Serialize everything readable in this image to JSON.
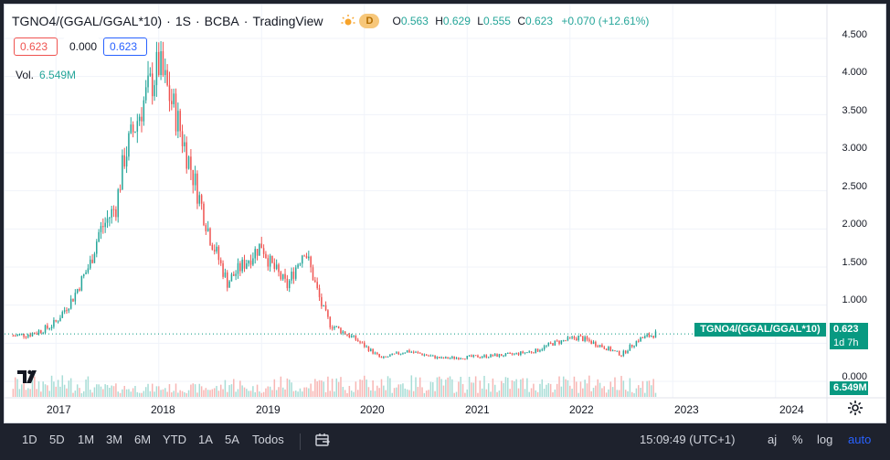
{
  "header": {
    "symbol": "TGNO4/(GGAL/GGAL*10)",
    "interval": "1S",
    "exchange": "BCBA",
    "source": "TradingView",
    "separator": "·",
    "market_badge": "D",
    "ohlc": {
      "o_label": "O",
      "o": "0.563",
      "h_label": "H",
      "h": "0.629",
      "l_label": "L",
      "l": "0.555",
      "c_label": "C",
      "c": "0.623",
      "change": "+0.070 (+12.61%)"
    }
  },
  "price_boxes": {
    "bid": "0.623",
    "spread": "0.000",
    "ask": "0.623"
  },
  "volume_legend": {
    "label": "Vol.",
    "value": "6.549M"
  },
  "price_axis": {
    "labels": [
      "4.500",
      "4.000",
      "3.500",
      "3.000",
      "2.500",
      "2.000",
      "1.500",
      "1.000",
      "0.000"
    ],
    "last_price": "0.623",
    "countdown": "1d 7h",
    "volume_tag": "6.549M",
    "series_tag": "TGNO4/(GGAL/GGAL*10)"
  },
  "time_axis": {
    "labels": [
      "2017",
      "2018",
      "2019",
      "2020",
      "2021",
      "2022",
      "2023",
      "2024"
    ]
  },
  "toolbar": {
    "ranges": [
      "1D",
      "5D",
      "1M",
      "3M",
      "6M",
      "YTD",
      "1A",
      "5A",
      "Todos"
    ],
    "clock": "15:09:49 (UTC+1)",
    "adj": "aj",
    "percent": "%",
    "log": "log",
    "auto": "auto"
  },
  "colors": {
    "up": "#26a69a",
    "down": "#ef5350",
    "accent": "#2962ff",
    "toolbar_bg": "#1e222d",
    "chart_bg": "#ffffff"
  },
  "chart_data": {
    "type": "candlestick",
    "interval": "weekly",
    "x_range": [
      "2016-07",
      "2024-07"
    ],
    "ylim": [
      0,
      4.5
    ],
    "last_price": 0.623,
    "volume_last": "6.549M",
    "price_path": [
      {
        "date": "2016-08",
        "close": 0.6
      },
      {
        "date": "2016-10",
        "close": 0.62
      },
      {
        "date": "2016-12",
        "close": 0.7
      },
      {
        "date": "2017-01",
        "close": 0.78
      },
      {
        "date": "2017-03",
        "close": 1.1
      },
      {
        "date": "2017-05",
        "close": 1.55
      },
      {
        "date": "2017-06",
        "close": 1.95
      },
      {
        "date": "2017-08",
        "close": 2.3
      },
      {
        "date": "2017-09",
        "close": 2.95
      },
      {
        "date": "2017-11",
        "close": 3.6
      },
      {
        "date": "2018-01",
        "close": 4.15
      },
      {
        "date": "2018-03",
        "close": 3.5
      },
      {
        "date": "2018-05",
        "close": 2.7
      },
      {
        "date": "2018-07",
        "close": 1.9
      },
      {
        "date": "2018-09",
        "close": 1.3
      },
      {
        "date": "2018-11",
        "close": 1.55
      },
      {
        "date": "2019-01",
        "close": 1.8
      },
      {
        "date": "2019-02",
        "close": 1.55
      },
      {
        "date": "2019-04",
        "close": 1.25
      },
      {
        "date": "2019-06",
        "close": 1.75
      },
      {
        "date": "2019-08",
        "close": 1.0
      },
      {
        "date": "2019-09",
        "close": 0.75
      },
      {
        "date": "2019-12",
        "close": 0.55
      },
      {
        "date": "2020-03",
        "close": 0.3
      },
      {
        "date": "2020-06",
        "close": 0.4
      },
      {
        "date": "2020-10",
        "close": 0.3
      },
      {
        "date": "2021-03",
        "close": 0.33
      },
      {
        "date": "2021-06",
        "close": 0.35
      },
      {
        "date": "2021-09",
        "close": 0.4
      },
      {
        "date": "2021-11",
        "close": 0.5
      },
      {
        "date": "2022-02",
        "close": 0.58
      },
      {
        "date": "2022-05",
        "close": 0.45
      },
      {
        "date": "2022-07",
        "close": 0.35
      },
      {
        "date": "2022-09",
        "close": 0.55
      },
      {
        "date": "2022-11",
        "close": 0.623
      }
    ]
  }
}
